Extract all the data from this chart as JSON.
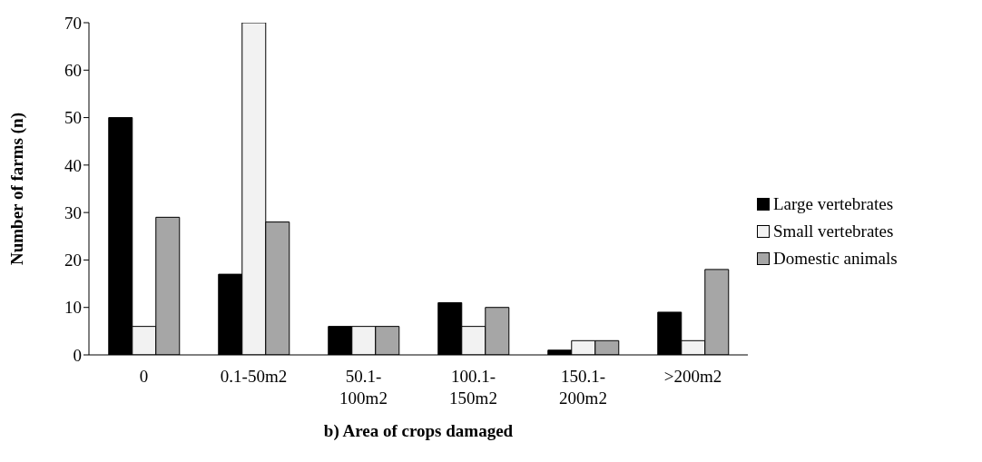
{
  "chart_data": {
    "type": "bar",
    "xlabel": "b) Area of crops damaged",
    "ylabel": "Number of farms (n)",
    "categories": [
      "0",
      "0.1-50m2",
      "50.1-\n100m2",
      "100.1-\n150m2",
      "150.1-\n200m2",
      ">200m2"
    ],
    "series": [
      {
        "name": "Large vertebrates",
        "color": "#000000",
        "values": [
          50,
          17,
          6,
          11,
          1,
          9
        ]
      },
      {
        "name": "Small vertebrates",
        "color": "#f2f2f2",
        "values": [
          6,
          70,
          6,
          6,
          3,
          3
        ]
      },
      {
        "name": "Domestic animals",
        "color": "#a6a6a6",
        "values": [
          29,
          28,
          6,
          10,
          3,
          18
        ]
      }
    ],
    "ylim": [
      0,
      70
    ],
    "yticks": [
      0,
      10,
      20,
      30,
      40,
      50,
      60,
      70
    ],
    "grid": false,
    "legend": "right"
  }
}
